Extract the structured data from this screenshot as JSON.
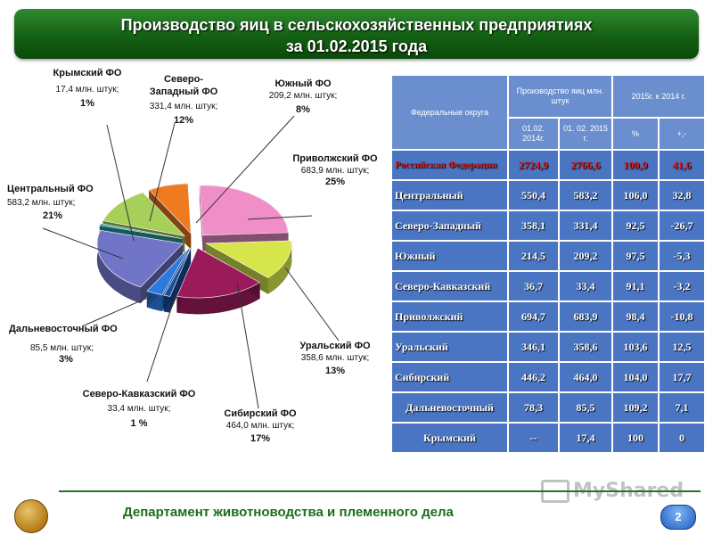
{
  "title": {
    "line1": "Производство яиц в сельскохозяйственных предприятиях",
    "line2": "за 01.02.2015 года"
  },
  "chart_data": {
    "type": "pie",
    "slices": [
      {
        "name": "Приволжский ФО",
        "value_text": "683,9 млн. штук;",
        "percent": "25%",
        "value": 683.9,
        "color": "#f08ec8"
      },
      {
        "name": "Уральский  ФО",
        "value_text": "358,6 млн. штук;",
        "percent": "13%",
        "value": 358.6,
        "color": "#d6e64a"
      },
      {
        "name": "Сибирский ФО",
        "value_text": "464,0 млн. штук;",
        "percent": "17%",
        "value": 464.0,
        "color": "#9a1a5a"
      },
      {
        "name": "Северо-Кавказский ФО",
        "value_text": "33,4 млн. штук;",
        "percent": "1 %",
        "value": 33.4,
        "color": "#1a4fa0"
      },
      {
        "name": "Дальневосточный ФО",
        "value_text": "85,5 млн. штук;",
        "percent": "3%",
        "value": 85.5,
        "color": "#2a7ae0"
      },
      {
        "name": "Центральный ФО",
        "value_text": "583,2 млн. штук;",
        "percent": "21%",
        "value": 583.2,
        "color": "#7075c8"
      },
      {
        "name": "Крымский ФО",
        "value_text": "17,4  млн. штук;",
        "percent": "1%",
        "value": 17.4,
        "color": "#2aa0a0"
      },
      {
        "name": "Северо-Западный ФО",
        "value_text": "331,4  млн. штук;",
        "percent": "12%",
        "value": 331.4,
        "color": "#a6d05a"
      },
      {
        "name": "Южный ФО",
        "value_text": "209,2 млн. штук;",
        "percent": "8%",
        "value": 209.2,
        "color": "#f07a20"
      }
    ]
  },
  "table": {
    "header": {
      "col1": "Федеральные округа",
      "col2": "Производство яиц млн. штук",
      "col3": "2015г. к 2014 г.",
      "sub1": "01.02. 2014г.",
      "sub2": "01. 02. 2015 г.",
      "sub3": "%",
      "sub4": "+,-"
    },
    "rows": [
      {
        "name": "Российская Федерация",
        "v2014": "2724,9",
        "v2015": "2766,6",
        "pct": "100,9",
        "diff": "41,6"
      },
      {
        "name": "Центральный",
        "v2014": "550,4",
        "v2015": "583,2",
        "pct": "106,0",
        "diff": "32,8"
      },
      {
        "name": "Северо-Западный",
        "v2014": "358,1",
        "v2015": "331,4",
        "pct": "92,5",
        "diff": "-26,7"
      },
      {
        "name": "Южный",
        "v2014": "214,5",
        "v2015": "209,2",
        "pct": "97,5",
        "diff": "-5,3"
      },
      {
        "name": "Северо-Кавказский",
        "v2014": "36,7",
        "v2015": "33,4",
        "pct": "91,1",
        "diff": "-3,2"
      },
      {
        "name": "Приволжский",
        "v2014": "694,7",
        "v2015": "683,9",
        "pct": "98,4",
        "diff": "-10,8"
      },
      {
        "name": "Уральский",
        "v2014": "346,1",
        "v2015": "358,6",
        "pct": "103,6",
        "diff": "12,5"
      },
      {
        "name": "Сибирский",
        "v2014": "446,2",
        "v2015": "464,0",
        "pct": "104,0",
        "diff": "17,7"
      },
      {
        "name": "Дальневосточный",
        "v2014": "78,3",
        "v2015": "85,5",
        "pct": "109,2",
        "diff": "7,1"
      },
      {
        "name": "Крымский",
        "v2014": "--",
        "v2015": "17,4",
        "pct": "100",
        "diff": "0"
      }
    ]
  },
  "footer": {
    "department": "Департамент животноводства и племенного дела",
    "page": "2",
    "watermark": "MyShared"
  }
}
